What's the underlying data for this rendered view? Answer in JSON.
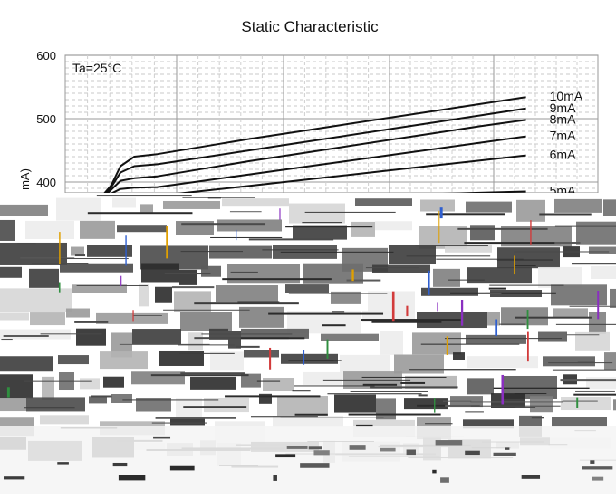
{
  "chart_data": {
    "type": "line",
    "title": "Static Characteristic",
    "annotation": "Ta=25°C",
    "ylabel": "mA)",
    "y_ticks": [
      400,
      500,
      600
    ],
    "ylim": [
      370,
      600
    ],
    "xlim": [
      0,
      10
    ],
    "grid": true,
    "series": [
      {
        "name": "10mA",
        "x": [
          0.8,
          1.0,
          1.2,
          1.5,
          2.0,
          3.0,
          4.0,
          5.0,
          6.0,
          7.0,
          8.0,
          9.0,
          10.0
        ],
        "y": [
          378,
          395,
          425,
          440,
          444,
          456,
          468,
          479,
          490,
          501,
          512,
          523,
          534
        ]
      },
      {
        "name": "9mA",
        "x": [
          0.8,
          1.0,
          1.2,
          1.5,
          2.0,
          3.0,
          4.0,
          5.0,
          6.0,
          7.0,
          8.0,
          9.0,
          10.0
        ],
        "y": [
          376,
          392,
          415,
          425,
          428,
          439,
          450,
          461,
          472,
          483,
          494,
          505,
          516
        ]
      },
      {
        "name": "8mA",
        "x": [
          0.8,
          1.0,
          1.2,
          1.5,
          2.0,
          3.0,
          4.0,
          5.0,
          6.0,
          7.0,
          8.0,
          9.0,
          10.0
        ],
        "y": [
          374,
          388,
          402,
          406,
          409,
          421,
          433,
          444,
          455,
          466,
          477,
          488,
          498
        ]
      },
      {
        "name": "7mA",
        "x": [
          0.8,
          1.0,
          1.2,
          1.5,
          2.0,
          3.0,
          4.0,
          5.0,
          6.0,
          7.0,
          8.0,
          9.0,
          10.0
        ],
        "y": [
          372,
          382,
          389,
          391,
          392,
          402,
          412,
          422,
          432,
          442,
          452,
          462,
          472
        ]
      },
      {
        "name": "6mA",
        "x": [
          0.8,
          1.0,
          1.2,
          1.5,
          2.0,
          3.0,
          4.0,
          5.0,
          6.0,
          7.0,
          8.0,
          9.0,
          10.0
        ],
        "y": [
          370,
          374,
          376,
          377,
          378,
          386,
          394,
          402,
          410,
          418,
          426,
          434,
          442
        ]
      },
      {
        "name": "5mA",
        "x": [
          2.0,
          3.0,
          4.0,
          5.0,
          6.0,
          7.0,
          8.0,
          9.0,
          10.0
        ],
        "y": [
          370,
          371,
          373,
          375,
          377,
          379,
          381,
          383,
          385
        ]
      }
    ]
  }
}
